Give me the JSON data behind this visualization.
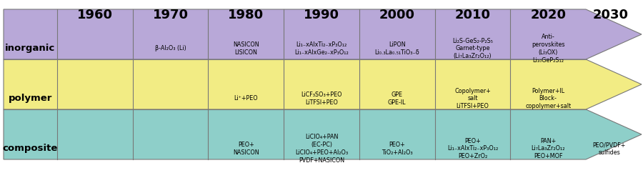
{
  "title_years": [
    "1960",
    "1970",
    "1980",
    "1990",
    "2000",
    "2010",
    "2020",
    "2030"
  ],
  "colors": {
    "inorganic": "#8ECFC9",
    "polymer": "#F2EC84",
    "composite": "#B8A8D8"
  },
  "bg_color": "#ffffff",
  "cells": {
    "inorganic": [
      {
        "col": 0,
        "text": ""
      },
      {
        "col": 1,
        "text": "β-Al₂O₃ (Li)"
      },
      {
        "col": 2,
        "text": "NASICON\nLISICON"
      },
      {
        "col": 3,
        "text": "Li₁₋xAlxTi₂₋xP₃O₁₂\nLi₁₋xAlxGe₂₋xP₃O₁₂"
      },
      {
        "col": 4,
        "text": "LiPON\nLi₀.₃La₀.₅₁TiO₃₋δ"
      },
      {
        "col": 5,
        "text": "Li₂S-GeS₂-P₂S₅\nGarnet-type\n(Li₇La₃Zr₂O₁₂)"
      },
      {
        "col": 6,
        "text": "Anti-\nperovskites\n(Li₃OX)\nLi₁₀GeP₂S₁₂"
      },
      {
        "col": 7,
        "text": ""
      }
    ],
    "polymer": [
      {
        "col": 0,
        "text": ""
      },
      {
        "col": 1,
        "text": ""
      },
      {
        "col": 2,
        "text": "Li⁺+PEO"
      },
      {
        "col": 3,
        "text": "LiCF₃SO₃+PEO\nLiTFSI+PEO"
      },
      {
        "col": 4,
        "text": "GPE\nGPE-IL"
      },
      {
        "col": 5,
        "text": "Copolymer+\nsalt\nLiTFSI+PEO"
      },
      {
        "col": 6,
        "text": "Polymer+IL\nBlock-\ncopolymer+salt"
      },
      {
        "col": 7,
        "text": ""
      }
    ],
    "composite": [
      {
        "col": 0,
        "text": ""
      },
      {
        "col": 1,
        "text": ""
      },
      {
        "col": 2,
        "text": "PEO+\nNASICON"
      },
      {
        "col": 3,
        "text": "LiClO₄+PAN\n(EC-PC)\nLiClO₄+PEO+Al₂O₃\nPVDF+NASICON"
      },
      {
        "col": 4,
        "text": "PEO+\nTiO₂+Al₂O₃"
      },
      {
        "col": 5,
        "text": "PEO+\nLi₁₋xAlxTi₂₋xP₃O₁₂\nPEO+ZrO₂"
      },
      {
        "col": 6,
        "text": "PAN+\nLi₇La₃Zr₂O₁₂\nPEO+MOF"
      },
      {
        "col": 7,
        "text": "PEO/PVDF+\nsulfides"
      }
    ]
  },
  "cell_font_size": 5.8,
  "label_font_size": 9.5,
  "year_font_size": 13
}
